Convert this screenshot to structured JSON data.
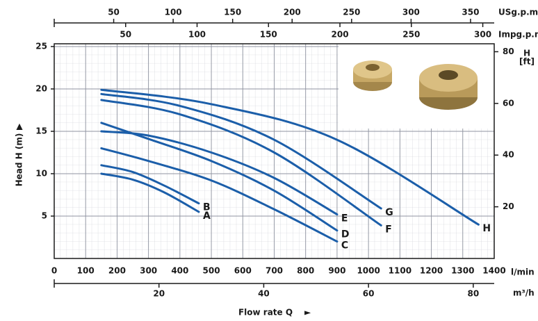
{
  "chart_data": {
    "type": "line",
    "xlabel": "Flow rate Q",
    "xlabel_arrow": "►",
    "ylabel": "Head H (m)",
    "ylabel_arrow": "▲",
    "x_unit": "l/min",
    "y2label": [
      "H",
      "[ft]"
    ],
    "xlim": [
      0,
      1400
    ],
    "xticks": [
      0,
      100,
      200,
      300,
      400,
      500,
      600,
      700,
      800,
      900,
      1000,
      1100,
      1200,
      1300,
      1400
    ],
    "ylim": [
      0,
      25
    ],
    "yticks": [
      5,
      10,
      15,
      20,
      25
    ],
    "y2lim": [
      0,
      82
    ],
    "y2ticks": [
      20,
      40,
      60,
      80
    ],
    "grid": true,
    "bottom_axis2": {
      "label": "m³/h",
      "xlim": [
        0,
        84
      ],
      "xticks": [
        20,
        40,
        60,
        80
      ]
    },
    "top_axes": [
      {
        "label": "USg.p.m",
        "xlim": [
          0,
          369.9
        ],
        "xticks": [
          50,
          100,
          150,
          200,
          250,
          300,
          350
        ]
      },
      {
        "label": "Impg.p.m",
        "xlim": [
          0,
          308
        ],
        "xticks": [
          50,
          100,
          150,
          200,
          250,
          300
        ]
      }
    ],
    "series": [
      {
        "name": "A",
        "color": "#1b5ea9",
        "x": [
          150,
          250,
          350,
          460
        ],
        "values": [
          10,
          9.3,
          7.8,
          5.5
        ]
      },
      {
        "name": "B",
        "color": "#1b5ea9",
        "x": [
          150,
          250,
          350,
          460
        ],
        "values": [
          11,
          10.2,
          8.6,
          6.5
        ]
      },
      {
        "name": "C",
        "color": "#1b5ea9",
        "x": [
          150,
          300,
          500,
          700,
          900
        ],
        "values": [
          13,
          11.5,
          9.2,
          5.8,
          2
        ]
      },
      {
        "name": "D",
        "color": "#1b5ea9",
        "x": [
          150,
          300,
          500,
          700,
          900
        ],
        "values": [
          16,
          14.1,
          11.5,
          8,
          3.3
        ]
      },
      {
        "name": "E",
        "color": "#1b5ea9",
        "x": [
          150,
          300,
          500,
          700,
          900
        ],
        "values": [
          15,
          14.5,
          12.5,
          9.5,
          5.2
        ]
      },
      {
        "name": "F",
        "color": "#1b5ea9",
        "x": [
          150,
          400,
          700,
          1040
        ],
        "values": [
          18.7,
          17,
          12.5,
          3.9
        ]
      },
      {
        "name": "G",
        "color": "#1b5ea9",
        "x": [
          150,
          400,
          700,
          1040
        ],
        "values": [
          19.4,
          18,
          14,
          5.9
        ]
      },
      {
        "name": "H",
        "color": "#1b5ea9",
        "x": [
          150,
          500,
          900,
          1350
        ],
        "values": [
          19.9,
          18.2,
          14,
          4
        ]
      }
    ]
  }
}
